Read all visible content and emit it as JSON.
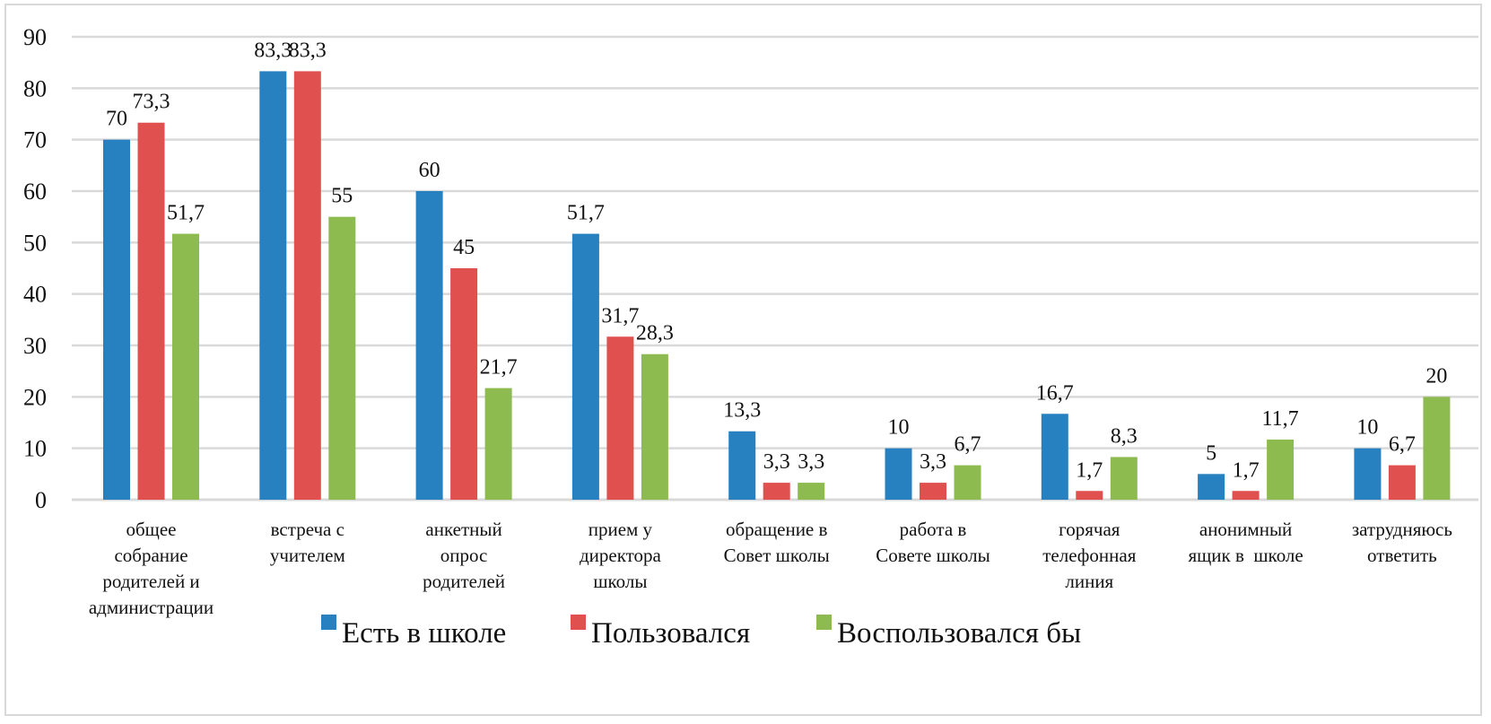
{
  "chart_data": {
    "type": "bar",
    "title": "",
    "xlabel": "",
    "ylabel": "",
    "ylim": [
      0,
      90
    ],
    "yticks": [
      "0",
      "10",
      "20",
      "30",
      "40",
      "50",
      "60",
      "70",
      "80",
      "90"
    ],
    "ytick_values": [
      0,
      10,
      20,
      30,
      40,
      50,
      60,
      70,
      80,
      90
    ],
    "grid": true,
    "legend_position": "bottom",
    "categories": [
      [
        "общее",
        "собрание",
        "родителей и",
        "администрации"
      ],
      [
        "встреча с",
        "учителем"
      ],
      [
        "анкетный",
        "опрос",
        "родителей"
      ],
      [
        "прием у",
        "директора",
        "школы"
      ],
      [
        "обращение в",
        "Совет школы"
      ],
      [
        "работа в",
        "Совете школы"
      ],
      [
        "горячая",
        "телефонная",
        "линия"
      ],
      [
        "анонимный",
        "ящик в  школе"
      ],
      [
        "затрудняюсь",
        "ответить"
      ]
    ],
    "series": [
      {
        "name": "Есть в школе",
        "color": "#2780C0",
        "values": [
          70,
          83.3,
          60,
          51.7,
          13.3,
          10,
          16.7,
          5,
          10
        ],
        "labels": [
          "70",
          "83,3",
          "60",
          "51,7",
          "13,3",
          "10",
          "16,7",
          "5",
          "10"
        ]
      },
      {
        "name": "Пользовался",
        "color": "#E0504E",
        "values": [
          73.3,
          83.3,
          45,
          31.7,
          3.3,
          3.3,
          1.7,
          1.7,
          6.7
        ],
        "labels": [
          "73,3",
          "83,3",
          "45",
          "31,7",
          "3,3",
          "3,3",
          "1,7",
          "1,7",
          "6,7"
        ]
      },
      {
        "name": "Воспользовался бы",
        "color": "#8DBB50",
        "values": [
          51.7,
          55,
          21.7,
          28.3,
          3.3,
          6.7,
          8.3,
          11.7,
          20
        ],
        "labels": [
          "51,7",
          "55",
          "21,7",
          "28,3",
          "3,3",
          "6,7",
          "8,3",
          "11,7",
          "20"
        ]
      }
    ]
  }
}
